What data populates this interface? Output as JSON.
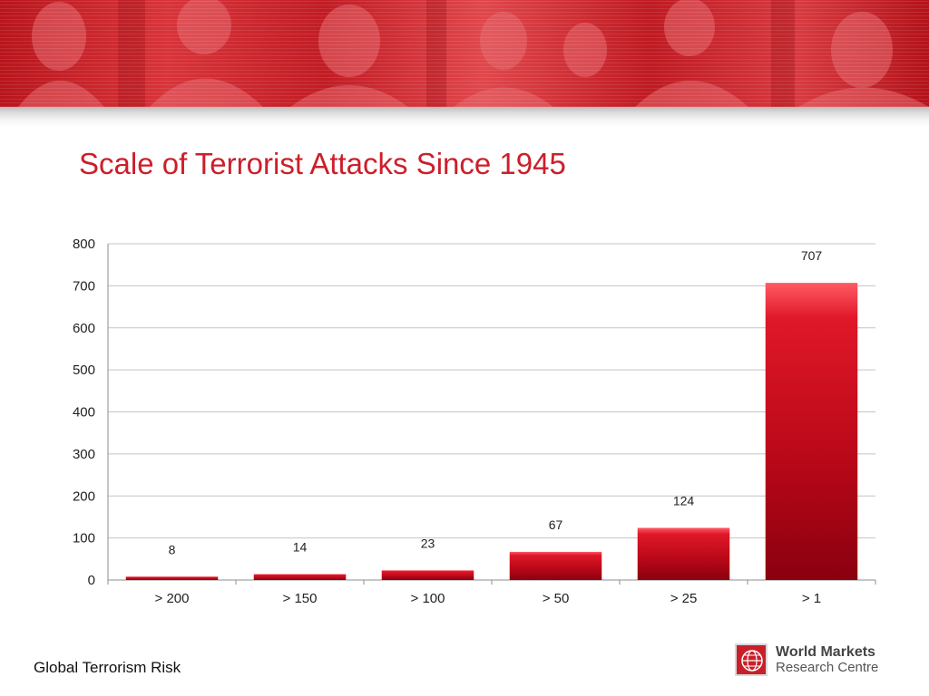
{
  "slide": {
    "title": "Scale of Terrorist Attacks Since 1945",
    "footer": "Global Terrorism Risk"
  },
  "logo": {
    "line1": "World Markets",
    "line2": "Research Centre",
    "color": "#c8202a"
  },
  "colors": {
    "title": "#cc1f2b",
    "bar_top": "#ff5a64",
    "bar_bottom": "#8a0010",
    "banner": "#c11c24"
  },
  "chart_data": {
    "type": "bar",
    "title": "",
    "xlabel": "",
    "ylabel": "",
    "categories": [
      "> 200",
      "> 150",
      "> 100",
      "> 50",
      "> 25",
      "> 1"
    ],
    "values": [
      8,
      14,
      23,
      67,
      124,
      707
    ],
    "data_labels": [
      "8",
      "14",
      "23",
      "67",
      "124",
      "707"
    ],
    "ylim": [
      0,
      800
    ],
    "yticks": [
      0,
      100,
      200,
      300,
      400,
      500,
      600,
      700,
      800
    ],
    "grid": true,
    "legend": "none"
  }
}
